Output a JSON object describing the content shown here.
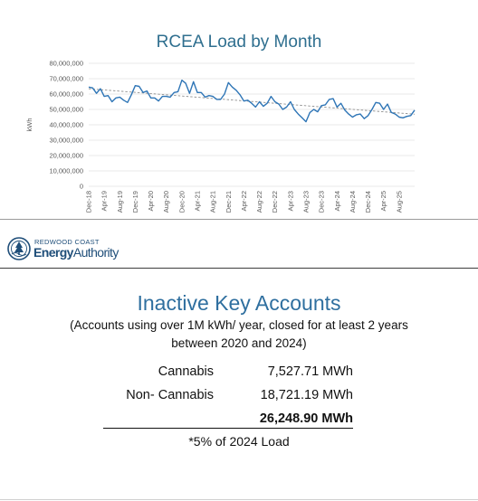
{
  "chart_data": {
    "type": "line",
    "title": "RCEA Load by Month",
    "ylabel": "kWh",
    "xlabel": "",
    "ylim": [
      0,
      80000000
    ],
    "yticks": [
      "0",
      "10,000,000",
      "20,000,000",
      "30,000,000",
      "40,000,000",
      "50,000,000",
      "60,000,000",
      "70,000,000",
      "80,000,000"
    ],
    "x_tick_labels": [
      "Dec-18",
      "Apr-19",
      "Aug-19",
      "Dec-19",
      "Apr-20",
      "Aug-20",
      "Dec-20",
      "Apr-21",
      "Aug-21",
      "Dec-21",
      "Apr-22",
      "Aug-22",
      "Dec-22",
      "Apr-23",
      "Aug-23",
      "Dec-23",
      "Apr-24",
      "Aug-24",
      "Dec-24",
      "Apr-25",
      "Aug-25"
    ],
    "x_start": "Dec-18",
    "x_end": "Nov-25",
    "grid": true,
    "trendline": true,
    "colors": {
      "series": "#2e75b6",
      "trend": "#8f8f8f",
      "grid": "#e3e3e3"
    },
    "series": [
      {
        "values": [
          64500000,
          64000000,
          60500000,
          63500000,
          58500000,
          59000000,
          55000000,
          57500000,
          58000000,
          56000000,
          54500000,
          59500000,
          65500000,
          65000000,
          61000000,
          62000000,
          57500000,
          57500000,
          55500000,
          58500000,
          58500000,
          58000000,
          61000000,
          61500000,
          69000000,
          67000000,
          60500000,
          68000000,
          61000000,
          61000000,
          58000000,
          59000000,
          58500000,
          56500000,
          56500000,
          60000000,
          67500000,
          64500000,
          62500000,
          59500000,
          55500000,
          56000000,
          54000000,
          51500000,
          55000000,
          52000000,
          54000000,
          58500000,
          55000000,
          53500000,
          50000000,
          51500000,
          55000000,
          50000000,
          47000000,
          44500000,
          42000000,
          48000000,
          50000000,
          48500000,
          52500000,
          53000000,
          56500000,
          57000000,
          51500000,
          54000000,
          49500000,
          47000000,
          45000000,
          46500000,
          47000000,
          44000000,
          46000000,
          50000000,
          54500000,
          54000000,
          50000000,
          53500000,
          48000000,
          47000000,
          45000000,
          44500000,
          45500000,
          46000000,
          49500000
        ]
      }
    ]
  },
  "logo": {
    "line1": "REDWOOD COAST",
    "line2a": "Energy",
    "line2b": "Authority"
  },
  "panel": {
    "title": "Inactive Key Accounts",
    "subtitle": "(Accounts using over 1M kWh/ year, closed for at least 2 years between 2020 and 2024)",
    "rows": [
      {
        "label": "Cannabis",
        "value": "7,527.71 MWh"
      },
      {
        "label": "Non- Cannabis",
        "value": "18,721.19 MWh"
      },
      {
        "label": "",
        "value": "26,248.90 MWh"
      }
    ],
    "note": "*5% of 2024 Load"
  }
}
